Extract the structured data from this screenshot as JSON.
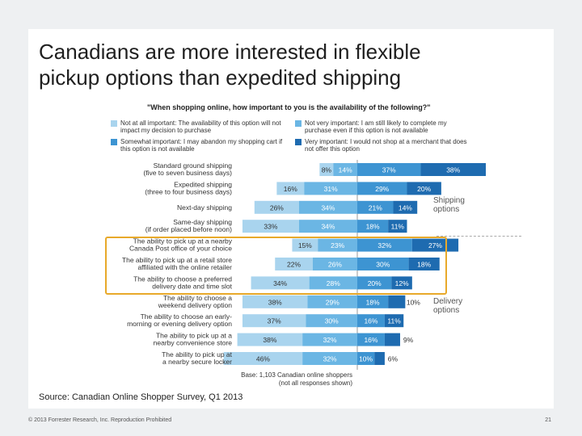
{
  "title": {
    "line1": "Canadians are more interested in flexible",
    "line2": "pickup options than expedited shipping"
  },
  "question": "\"When shopping online, how important to you is the availability of the following?\"",
  "legend": [
    {
      "label": "Not at all important: The availability of this option will not impact my decision to purchase",
      "color": "#a9d4ee"
    },
    {
      "label": "Not very important: I am still likely to complete my purchase even if this option is not available",
      "color": "#6bb6e4"
    },
    {
      "label": "Somewhat important: I may abandon my shopping cart if this option is not available",
      "color": "#3d94d2"
    },
    {
      "label": "Very important: I would not shop at a merchant that does not offer this option",
      "color": "#1e6bb0"
    }
  ],
  "groups": {
    "shipping": "Shipping options",
    "delivery": "Delivery options"
  },
  "base": "Base: 1,103 Canadian online shoppers (not all responses shown)",
  "source": "Source: Canadian Online Shopper Survey, Q1 2013",
  "footer_left": "© 2013 Forrester Research, Inc. Reproduction Prohibited",
  "footer_right": "21",
  "chart_data": {
    "type": "bar",
    "orientation": "horizontal-diverging-stacked",
    "categories": [
      "Standard ground shipping (five to seven business days)",
      "Expedited shipping (three to four business days)",
      "Next-day shipping",
      "Same-day shipping (if order placed before noon)",
      "The ability to pick up at a nearby Canada Post office of your choice",
      "The ability to pick up at a retail store affiliated with the online retailer",
      "The ability to choose a preferred delivery date and time slot",
      "The ability to choose a weekend delivery option",
      "The ability to choose an early-morning or evening delivery option",
      "The ability to pick up at a nearby convenience store",
      "The ability to pick up at a nearby secure locker"
    ],
    "series": [
      {
        "name": "Not at all important",
        "values": [
          8,
          16,
          26,
          33,
          15,
          22,
          34,
          38,
          37,
          38,
          46
        ]
      },
      {
        "name": "Not very important",
        "values": [
          14,
          31,
          34,
          34,
          23,
          26,
          28,
          29,
          30,
          32,
          32
        ]
      },
      {
        "name": "Somewhat important",
        "values": [
          37,
          29,
          21,
          18,
          32,
          30,
          20,
          18,
          16,
          16,
          10
        ]
      },
      {
        "name": "Very important",
        "values": [
          38,
          20,
          14,
          11,
          27,
          18,
          12,
          10,
          11,
          9,
          6
        ]
      }
    ],
    "value_labels": [
      [
        "8%",
        "14%",
        "37%",
        "38%"
      ],
      [
        "16%",
        "31%",
        "29%",
        "20%"
      ],
      [
        "26%",
        "34%",
        "21%",
        "14%"
      ],
      [
        "33%",
        "34%",
        "18%",
        "11%"
      ],
      [
        "15%",
        "23%",
        "32%",
        "27%"
      ],
      [
        "22%",
        "26%",
        "30%",
        "18%"
      ],
      [
        "34%",
        "28%",
        "20%",
        "12%"
      ],
      [
        "38%",
        "29%",
        "18%",
        "10%"
      ],
      [
        "37%",
        "30%",
        "16%",
        "11%"
      ],
      [
        "38%",
        "32%",
        "16%",
        "9%"
      ],
      [
        "46%",
        "32%",
        "10%",
        "6%"
      ]
    ],
    "label_lines": [
      [
        "Standard ground shipping",
        "(five to seven business days)"
      ],
      [
        "Expedited shipping",
        "(three to four business days)"
      ],
      [
        "Next-day shipping"
      ],
      [
        "Same-day shipping",
        "(if order placed before noon)"
      ],
      [
        "The ability to pick up at a nearby",
        "Canada Post office of your choice"
      ],
      [
        "The ability to pick up at a retail store",
        "affiliated with the online retailer"
      ],
      [
        "The ability to choose a preferred",
        "delivery date and time slot"
      ],
      [
        "The ability to choose a",
        "weekend delivery option"
      ],
      [
        "The ability to choose an early-",
        "morning or evening delivery option"
      ],
      [
        "The ability to pick up at a",
        "nearby convenience store"
      ],
      [
        "The ability to pick up at",
        "a nearby secure locker"
      ]
    ],
    "colors": [
      "#a9d4ee",
      "#6bb6e4",
      "#3d94d2",
      "#1e6bb0"
    ]
  }
}
